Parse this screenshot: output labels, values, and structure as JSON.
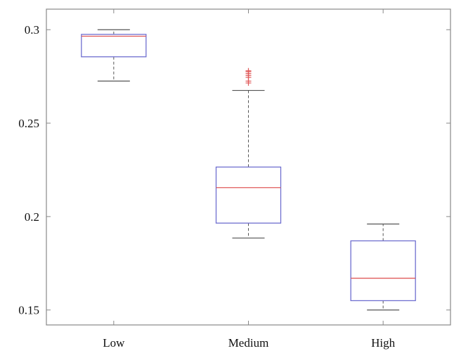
{
  "chart_data": {
    "type": "box",
    "categories": [
      "Low",
      "Medium",
      "High"
    ],
    "ylim": [
      0.142,
      0.311
    ],
    "yticks": [
      0.15,
      0.2,
      0.25,
      0.3
    ],
    "ytick_labels": [
      "0.15",
      "0.2",
      "0.25",
      "0.3"
    ],
    "title": "",
    "xlabel": "",
    "ylabel": "",
    "grid": false,
    "boxes": [
      {
        "category": "Low",
        "whisker_low": 0.2725,
        "q1": 0.2855,
        "median": 0.2965,
        "q3": 0.2975,
        "whisker_high": 0.3,
        "outliers": []
      },
      {
        "category": "Medium",
        "whisker_low": 0.1885,
        "q1": 0.1965,
        "median": 0.2155,
        "q3": 0.2265,
        "whisker_high": 0.2675,
        "outliers": [
          0.2715,
          0.2725,
          0.2745,
          0.2755,
          0.2765,
          0.2775,
          0.278
        ]
      },
      {
        "category": "High",
        "whisker_low": 0.15,
        "q1": 0.155,
        "median": 0.167,
        "q3": 0.187,
        "whisker_high": 0.196,
        "outliers": []
      }
    ],
    "colors": {
      "box": "#6f6fd0",
      "median": "#e05a5a",
      "whisker": "#555555",
      "outlier": "#e05a5a",
      "axis": "#888888"
    }
  }
}
